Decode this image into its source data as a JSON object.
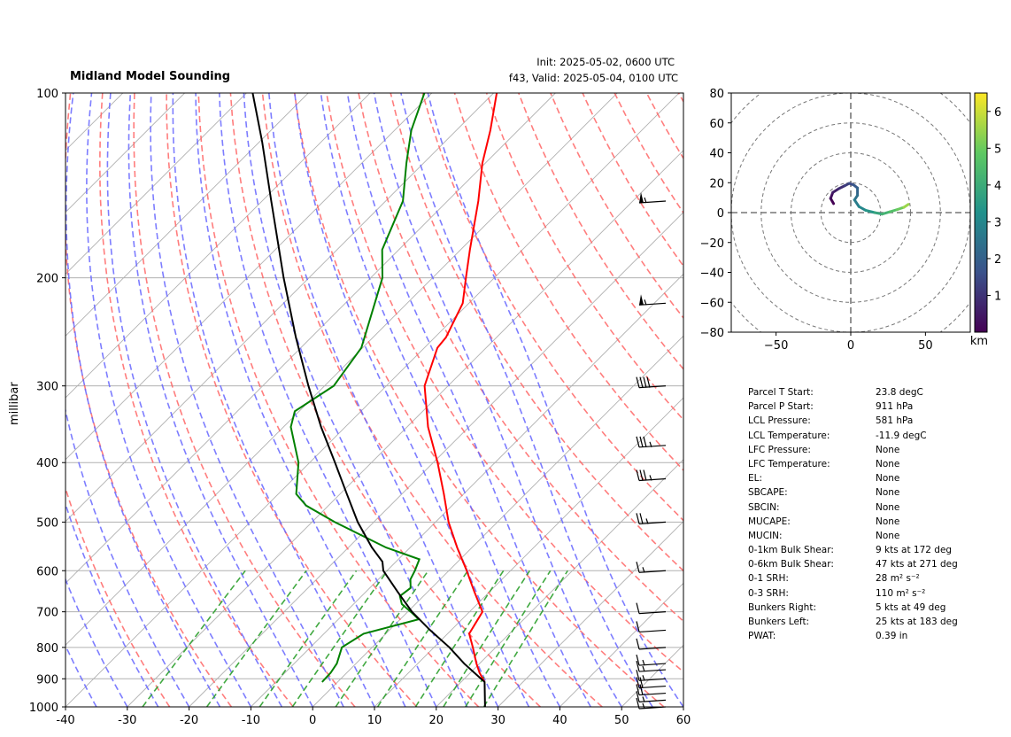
{
  "title": "Midland Model Sounding",
  "init_text": "Init: 2025-05-02, 0600 UTC",
  "valid_text": "f43, Valid: 2025-05-04, 0100 UTC",
  "colors": {
    "temperature": "#ff0000",
    "dewpoint": "#008000",
    "parcel": "#000000",
    "dry_adiabat": "#ff6666",
    "moist_adiabat": "#6666ff",
    "mixing_ratio": "#2ca02c",
    "freezing_isotherm": "#9933cc",
    "isotherm": "#b0b0b0"
  },
  "chart_data": [
    {
      "type": "line",
      "name": "skew-t",
      "ylabel": "millibar",
      "xlim": [
        -40,
        60
      ],
      "ylim": [
        1000,
        100
      ],
      "y_log": true,
      "x_ticks": [
        -40,
        -30,
        -20,
        -10,
        0,
        10,
        20,
        30,
        40,
        50,
        60
      ],
      "y_ticks": [
        1000,
        900,
        800,
        700,
        600,
        500,
        400,
        300,
        200,
        100
      ],
      "grid": true,
      "temperature": [
        {
          "p": 911,
          "t": 23.8
        },
        {
          "p": 880,
          "t": 21.5
        },
        {
          "p": 850,
          "t": 19.5
        },
        {
          "p": 800,
          "t": 16.3
        },
        {
          "p": 760,
          "t": 13.5
        },
        {
          "p": 730,
          "t": 12.8
        },
        {
          "p": 700,
          "t": 12.1
        },
        {
          "p": 650,
          "t": 7.6
        },
        {
          "p": 600,
          "t": 2.9
        },
        {
          "p": 550,
          "t": -2.4
        },
        {
          "p": 500,
          "t": -7.9
        },
        {
          "p": 450,
          "t": -13.2
        },
        {
          "p": 400,
          "t": -19.3
        },
        {
          "p": 350,
          "t": -26.6
        },
        {
          "p": 300,
          "t": -33.8
        },
        {
          "p": 260,
          "t": -37.9
        },
        {
          "p": 250,
          "t": -38.2
        },
        {
          "p": 220,
          "t": -41.0
        },
        {
          "p": 200,
          "t": -44.6
        },
        {
          "p": 180,
          "t": -48.5
        },
        {
          "p": 150,
          "t": -55.0
        },
        {
          "p": 130,
          "t": -60.5
        },
        {
          "p": 115,
          "t": -64.5
        },
        {
          "p": 100,
          "t": -69.5
        }
      ],
      "dewpoint": [
        {
          "p": 911,
          "t": -2.5
        },
        {
          "p": 880,
          "t": -2.6
        },
        {
          "p": 850,
          "t": -3.1
        },
        {
          "p": 800,
          "t": -4.9
        },
        {
          "p": 760,
          "t": -3.6
        },
        {
          "p": 720,
          "t": 3.0
        },
        {
          "p": 700,
          "t": 0.5
        },
        {
          "p": 680,
          "t": -2.2
        },
        {
          "p": 660,
          "t": -3.8
        },
        {
          "p": 640,
          "t": -3.4
        },
        {
          "p": 620,
          "t": -4.8
        },
        {
          "p": 600,
          "t": -5.5
        },
        {
          "p": 575,
          "t": -6.6
        },
        {
          "p": 550,
          "t": -13.9
        },
        {
          "p": 500,
          "t": -26.3
        },
        {
          "p": 470,
          "t": -33.6
        },
        {
          "p": 450,
          "t": -37.1
        },
        {
          "p": 400,
          "t": -41.8
        },
        {
          "p": 350,
          "t": -48.8
        },
        {
          "p": 330,
          "t": -50.7
        },
        {
          "p": 300,
          "t": -48.5
        },
        {
          "p": 260,
          "t": -50.2
        },
        {
          "p": 200,
          "t": -58.1
        },
        {
          "p": 180,
          "t": -62.7
        },
        {
          "p": 150,
          "t": -67.2
        },
        {
          "p": 130,
          "t": -72.8
        },
        {
          "p": 115,
          "t": -77.3
        },
        {
          "p": 100,
          "t": -81.2
        }
      ],
      "parcel_profile": [
        {
          "p": 1000,
          "t": 27.9
        },
        {
          "p": 911,
          "t": 23.8
        },
        {
          "p": 850,
          "t": 17.5
        },
        {
          "p": 800,
          "t": 12.5
        },
        {
          "p": 750,
          "t": 6.6
        },
        {
          "p": 700,
          "t": 0.7
        },
        {
          "p": 650,
          "t": -4.8
        },
        {
          "p": 600,
          "t": -10.6
        },
        {
          "p": 580,
          "t": -12.2
        },
        {
          "p": 550,
          "t": -16.2
        },
        {
          "p": 500,
          "t": -22.6
        },
        {
          "p": 450,
          "t": -28.9
        },
        {
          "p": 400,
          "t": -35.9
        },
        {
          "p": 350,
          "t": -43.9
        },
        {
          "p": 300,
          "t": -52.6
        },
        {
          "p": 250,
          "t": -62.5
        },
        {
          "p": 200,
          "t": -74.1
        },
        {
          "p": 150,
          "t": -88.5
        },
        {
          "p": 120,
          "t": -99.6
        },
        {
          "p": 100,
          "t": -109.0
        }
      ],
      "wind_barbs": [
        {
          "p": 1000,
          "kts": 15
        },
        {
          "p": 975,
          "kts": 15
        },
        {
          "p": 950,
          "kts": 20
        },
        {
          "p": 925,
          "kts": 20
        },
        {
          "p": 900,
          "kts": 15
        },
        {
          "p": 870,
          "kts": 15
        },
        {
          "p": 850,
          "kts": 15
        },
        {
          "p": 800,
          "kts": 10
        },
        {
          "p": 750,
          "kts": 10
        },
        {
          "p": 700,
          "kts": 10
        },
        {
          "p": 600,
          "kts": 15
        },
        {
          "p": 500,
          "kts": 25
        },
        {
          "p": 425,
          "kts": 35
        },
        {
          "p": 375,
          "kts": 35
        },
        {
          "p": 300,
          "kts": 40
        },
        {
          "p": 220,
          "kts": 55
        },
        {
          "p": 150,
          "kts": 55
        }
      ]
    },
    {
      "type": "line",
      "name": "hodograph",
      "xlim": [
        -80,
        80
      ],
      "ylim": [
        -80,
        80
      ],
      "x_ticks": [
        -50,
        0,
        50
      ],
      "y_ticks": [
        80,
        60,
        40,
        20,
        0,
        -20,
        -40,
        -60,
        -80
      ],
      "colorbar": {
        "label": "km",
        "ticks": [
          1,
          2,
          3,
          4,
          5,
          6
        ],
        "range": [
          0,
          6.5
        ]
      },
      "points": [
        {
          "u": -11.5,
          "v": 6.0,
          "h": 0.0
        },
        {
          "u": -13.5,
          "v": 9.5,
          "h": 0.3
        },
        {
          "u": -12.0,
          "v": 13.5,
          "h": 0.6
        },
        {
          "u": -8.0,
          "v": 16.0,
          "h": 0.9
        },
        {
          "u": -4.0,
          "v": 18.0,
          "h": 1.2
        },
        {
          "u": -1.0,
          "v": 19.5,
          "h": 1.5
        },
        {
          "u": 2.0,
          "v": 18.5,
          "h": 1.8
        },
        {
          "u": 4.5,
          "v": 16.5,
          "h": 2.1
        },
        {
          "u": 4.5,
          "v": 11.5,
          "h": 2.4
        },
        {
          "u": 2.5,
          "v": 8.5,
          "h": 2.7
        },
        {
          "u": 5.5,
          "v": 4.0,
          "h": 3.0
        },
        {
          "u": 10.0,
          "v": 1.5,
          "h": 3.4
        },
        {
          "u": 16.0,
          "v": 0.0,
          "h": 3.8
        },
        {
          "u": 21.0,
          "v": -1.0,
          "h": 4.2
        },
        {
          "u": 26.0,
          "v": 0.5,
          "h": 4.6
        },
        {
          "u": 31.0,
          "v": 2.0,
          "h": 5.0
        },
        {
          "u": 35.5,
          "v": 3.5,
          "h": 5.5
        },
        {
          "u": 38.5,
          "v": 5.5,
          "h": 6.0
        }
      ]
    }
  ],
  "parameters": [
    {
      "label": "Parcel T Start:",
      "value": "23.8 degC"
    },
    {
      "label": "Parcel P Start:",
      "value": "911 hPa"
    },
    {
      "label": "LCL Pressure:",
      "value": "581 hPa"
    },
    {
      "label": "LCL Temperature:",
      "value": "-11.9 degC"
    },
    {
      "label": "LFC Pressure:",
      "value": "None"
    },
    {
      "label": "LFC Temperature:",
      "value": "None"
    },
    {
      "label": "EL:",
      "value": "None"
    },
    {
      "label": "SBCAPE:",
      "value": "None"
    },
    {
      "label": "SBCIN:",
      "value": "None"
    },
    {
      "label": "MUCAPE:",
      "value": "None"
    },
    {
      "label": "MUCIN:",
      "value": "None"
    },
    {
      "label": "0-1km Bulk Shear:",
      "value": "9 kts at 172 deg"
    },
    {
      "label": "0-6km Bulk Shear:",
      "value": "47 kts at 271 deg"
    },
    {
      "label": "0-1 SRH:",
      "value": "28 m² s⁻²"
    },
    {
      "label": "0-3 SRH:",
      "value": "110 m² s⁻²"
    },
    {
      "label": "Bunkers Right:",
      "value": "5 kts at 49 deg"
    },
    {
      "label": "Bunkers Left:",
      "value": "25 kts at 183 deg"
    },
    {
      "label": "PWAT:",
      "value": "0.39 in"
    }
  ]
}
